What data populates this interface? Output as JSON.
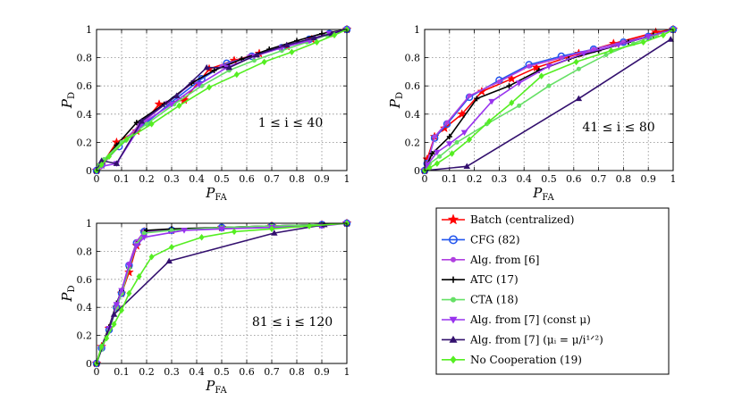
{
  "chart_data": [
    {
      "type": "line",
      "panel": "top-left",
      "annotation": "1 ≤ i ≤ 40",
      "xlabel": "P",
      "xlabel_sub": "FA",
      "ylabel": "P",
      "ylabel_sub": "D",
      "xlim": [
        0,
        1
      ],
      "ylim": [
        0,
        1
      ],
      "xticks": [
        "0",
        "0.1",
        "0.2",
        "0.3",
        "0.4",
        "0.5",
        "0.6",
        "0.7",
        "0.8",
        "0.9",
        "1"
      ],
      "yticks": [
        "0",
        "0.2",
        "0.4",
        "0.6",
        "0.8",
        "1"
      ],
      "grid": true,
      "series": [
        {
          "key": "batch",
          "x": [
            0,
            0.02,
            0.08,
            0.16,
            0.25,
            0.35,
            0.45,
            0.55,
            0.65,
            0.76,
            0.86,
            0.93,
            1
          ],
          "y": [
            0,
            0.04,
            0.2,
            0.28,
            0.47,
            0.5,
            0.72,
            0.78,
            0.83,
            0.88,
            0.93,
            0.97,
            1
          ]
        },
        {
          "key": "cfg",
          "x": [
            0,
            0.02,
            0.09,
            0.2,
            0.31,
            0.42,
            0.52,
            0.62,
            0.74,
            0.85,
            0.93,
            1
          ],
          "y": [
            0,
            0.04,
            0.17,
            0.34,
            0.5,
            0.65,
            0.76,
            0.81,
            0.87,
            0.93,
            0.97,
            1
          ]
        },
        {
          "key": "alg6",
          "x": [
            0,
            0.02,
            0.08,
            0.17,
            0.28,
            0.39,
            0.5,
            0.61,
            0.73,
            0.84,
            0.92,
            1
          ],
          "y": [
            0,
            0.03,
            0.16,
            0.32,
            0.48,
            0.63,
            0.74,
            0.81,
            0.87,
            0.92,
            0.97,
            1
          ]
        },
        {
          "key": "atc",
          "x": [
            0,
            0.02,
            0.08,
            0.16,
            0.27,
            0.38,
            0.47,
            0.58,
            0.69,
            0.8,
            0.9,
            1
          ],
          "y": [
            0,
            0.05,
            0.18,
            0.34,
            0.47,
            0.62,
            0.71,
            0.79,
            0.86,
            0.92,
            0.97,
            1
          ]
        },
        {
          "key": "cta",
          "x": [
            0,
            0.01,
            0.03,
            0.1,
            0.2,
            0.31,
            0.42,
            0.53,
            0.63,
            0.74,
            0.84,
            0.92,
            1
          ],
          "y": [
            0,
            0.04,
            0.08,
            0.2,
            0.33,
            0.47,
            0.6,
            0.71,
            0.78,
            0.85,
            0.91,
            0.96,
            1
          ]
        },
        {
          "key": "alg7c",
          "x": [
            0,
            0.02,
            0.08,
            0.18,
            0.3,
            0.41,
            0.52,
            0.63,
            0.74,
            0.85,
            0.93,
            1
          ],
          "y": [
            0,
            0.03,
            0.05,
            0.33,
            0.47,
            0.61,
            0.73,
            0.81,
            0.87,
            0.92,
            0.97,
            1
          ]
        },
        {
          "key": "alg7v",
          "x": [
            0,
            0.02,
            0.08,
            0.18,
            0.32,
            0.44,
            0.53,
            0.64,
            0.76,
            0.87,
            0.94,
            1
          ],
          "y": [
            0,
            0.07,
            0.05,
            0.35,
            0.53,
            0.73,
            0.73,
            0.82,
            0.89,
            0.94,
            0.97,
            1
          ]
        },
        {
          "key": "nocoop",
          "x": [
            0,
            0.02,
            0.05,
            0.12,
            0.22,
            0.33,
            0.45,
            0.56,
            0.67,
            0.78,
            0.88,
            0.95,
            1
          ],
          "y": [
            0,
            0.04,
            0.1,
            0.22,
            0.33,
            0.46,
            0.59,
            0.68,
            0.77,
            0.84,
            0.91,
            0.96,
            1
          ]
        }
      ]
    },
    {
      "type": "line",
      "panel": "top-right",
      "annotation": "41 ≤ i ≤ 80",
      "xlabel": "P",
      "xlabel_sub": "FA",
      "ylabel": "P",
      "ylabel_sub": "D",
      "xlim": [
        0,
        1
      ],
      "ylim": [
        0,
        1
      ],
      "xticks": [
        "0",
        "0.1",
        "0.2",
        "0.3",
        "0.4",
        "0.5",
        "0.6",
        "0.7",
        "0.8",
        "0.9",
        "1"
      ],
      "yticks": [
        "0",
        "0.2",
        "0.4",
        "0.6",
        "0.8",
        "1"
      ],
      "grid": true,
      "series": [
        {
          "key": "batch",
          "x": [
            0,
            0.01,
            0.04,
            0.08,
            0.15,
            0.23,
            0.35,
            0.45,
            0.62,
            0.76,
            0.93,
            1
          ],
          "y": [
            0,
            0.08,
            0.24,
            0.3,
            0.4,
            0.56,
            0.65,
            0.73,
            0.83,
            0.9,
            0.98,
            1
          ]
        },
        {
          "key": "cfg",
          "x": [
            0,
            0.01,
            0.04,
            0.09,
            0.18,
            0.3,
            0.42,
            0.55,
            0.68,
            0.8,
            0.9,
            1
          ],
          "y": [
            0,
            0.05,
            0.23,
            0.33,
            0.52,
            0.64,
            0.75,
            0.81,
            0.86,
            0.91,
            0.95,
            1
          ]
        },
        {
          "key": "alg6",
          "x": [
            0,
            0.01,
            0.04,
            0.09,
            0.18,
            0.3,
            0.42,
            0.55,
            0.68,
            0.8,
            0.9,
            1
          ],
          "y": [
            0,
            0.05,
            0.24,
            0.34,
            0.53,
            0.63,
            0.74,
            0.8,
            0.86,
            0.91,
            0.95,
            1
          ]
        },
        {
          "key": "atc",
          "x": [
            0,
            0.01,
            0.03,
            0.1,
            0.21,
            0.34,
            0.46,
            0.58,
            0.7,
            0.82,
            0.92,
            1
          ],
          "y": [
            0,
            0.04,
            0.12,
            0.24,
            0.51,
            0.6,
            0.71,
            0.79,
            0.85,
            0.91,
            0.96,
            1
          ]
        },
        {
          "key": "cta",
          "x": [
            0,
            0.02,
            0.06,
            0.13,
            0.25,
            0.38,
            0.5,
            0.62,
            0.73,
            0.84,
            0.93,
            1
          ],
          "y": [
            0,
            0.05,
            0.1,
            0.2,
            0.33,
            0.46,
            0.6,
            0.72,
            0.82,
            0.9,
            0.96,
            1
          ]
        },
        {
          "key": "alg7c",
          "x": [
            0,
            0.01,
            0.05,
            0.1,
            0.16,
            0.27,
            0.38,
            0.5,
            0.64,
            0.78,
            0.9,
            1
          ],
          "y": [
            0,
            0.04,
            0.13,
            0.19,
            0.27,
            0.49,
            0.62,
            0.74,
            0.83,
            0.89,
            0.95,
            1
          ]
        },
        {
          "key": "alg7v",
          "x": [
            0,
            0.17,
            0.62,
            0.99
          ],
          "y": [
            0,
            0.03,
            0.51,
            0.93
          ]
        },
        {
          "key": "nocoop",
          "x": [
            0,
            0.02,
            0.05,
            0.11,
            0.18,
            0.26,
            0.35,
            0.47,
            0.61,
            0.75,
            0.88,
            0.96,
            1
          ],
          "y": [
            0,
            0.02,
            0.05,
            0.12,
            0.22,
            0.35,
            0.48,
            0.67,
            0.77,
            0.85,
            0.91,
            0.96,
            1
          ]
        }
      ]
    },
    {
      "type": "line",
      "panel": "bottom-left",
      "annotation": "81 ≤ i ≤ 120",
      "xlabel": "P",
      "xlabel_sub": "FA",
      "ylabel": "P",
      "ylabel_sub": "D",
      "xlim": [
        0,
        1
      ],
      "ylim": [
        0,
        1
      ],
      "xticks": [
        "0",
        "0.1",
        "0.2",
        "0.3",
        "0.4",
        "0.5",
        "0.6",
        "0.7",
        "0.8",
        "0.9",
        "1"
      ],
      "yticks": [
        "0",
        "0.2",
        "0.4",
        "0.6",
        "0.8",
        "1"
      ],
      "grid": true,
      "series": [
        {
          "key": "batch",
          "x": [
            0,
            0.02,
            0.05,
            0.08,
            0.1,
            0.13,
            0.16,
            0.19,
            0.3,
            0.5,
            0.7,
            0.9,
            1
          ],
          "y": [
            0,
            0.12,
            0.25,
            0.4,
            0.5,
            0.65,
            0.84,
            0.94,
            0.95,
            0.97,
            0.98,
            0.99,
            1
          ]
        },
        {
          "key": "cfg",
          "x": [
            0,
            0.02,
            0.05,
            0.08,
            0.1,
            0.13,
            0.16,
            0.19,
            0.3,
            0.5,
            0.7,
            0.9,
            1
          ],
          "y": [
            0,
            0.11,
            0.24,
            0.4,
            0.5,
            0.7,
            0.86,
            0.94,
            0.95,
            0.97,
            0.98,
            0.99,
            1
          ]
        },
        {
          "key": "alg6",
          "x": [
            0,
            0.02,
            0.05,
            0.08,
            0.1,
            0.13,
            0.16,
            0.19,
            0.3,
            0.5,
            0.7,
            0.9,
            1
          ],
          "y": [
            0,
            0.11,
            0.25,
            0.42,
            0.52,
            0.71,
            0.87,
            0.94,
            0.95,
            0.97,
            0.98,
            0.99,
            1
          ]
        },
        {
          "key": "atc",
          "x": [
            0,
            0.02,
            0.05,
            0.08,
            0.1,
            0.13,
            0.16,
            0.2,
            0.3,
            0.5,
            0.7,
            0.9,
            1
          ],
          "y": [
            0,
            0.12,
            0.26,
            0.43,
            0.52,
            0.68,
            0.85,
            0.95,
            0.96,
            0.97,
            0.98,
            0.99,
            1
          ]
        },
        {
          "key": "cta",
          "x": [
            0,
            0.02,
            0.05,
            0.08,
            0.1,
            0.13,
            0.16,
            0.19,
            0.3,
            0.5,
            0.7,
            0.9,
            1
          ],
          "y": [
            0,
            0.1,
            0.24,
            0.4,
            0.5,
            0.68,
            0.85,
            0.93,
            0.95,
            0.97,
            0.98,
            0.99,
            1
          ]
        },
        {
          "key": "alg7c",
          "x": [
            0,
            0.02,
            0.05,
            0.08,
            0.1,
            0.13,
            0.16,
            0.19,
            0.35,
            0.5,
            0.7,
            0.9,
            1
          ],
          "y": [
            0,
            0.11,
            0.25,
            0.42,
            0.52,
            0.7,
            0.84,
            0.9,
            0.95,
            0.96,
            0.97,
            0.98,
            1
          ]
        },
        {
          "key": "alg7v",
          "x": [
            0,
            0.07,
            0.29,
            0.71,
            0.91,
            1
          ],
          "y": [
            0,
            0.35,
            0.73,
            0.93,
            0.99,
            1
          ]
        },
        {
          "key": "nocoop",
          "x": [
            0,
            0.02,
            0.04,
            0.07,
            0.1,
            0.13,
            0.17,
            0.22,
            0.3,
            0.42,
            0.55,
            0.7,
            0.85,
            1
          ],
          "y": [
            0,
            0.12,
            0.18,
            0.28,
            0.38,
            0.5,
            0.62,
            0.76,
            0.83,
            0.9,
            0.94,
            0.96,
            0.98,
            1
          ]
        }
      ]
    }
  ],
  "legend": [
    {
      "key": "batch",
      "label": "Batch (centralized)",
      "color": "#ff0000",
      "marker": "star"
    },
    {
      "key": "cfg",
      "label": "CFG (82)",
      "color": "#2255ee",
      "marker": "circle-open"
    },
    {
      "key": "alg6",
      "label": "Alg. from [6]",
      "color": "#b040e0",
      "marker": "dot"
    },
    {
      "key": "atc",
      "label": "ATC (17)",
      "color": "#000000",
      "marker": "plus"
    },
    {
      "key": "cta",
      "label": "CTA (18)",
      "color": "#66e066",
      "marker": "dot"
    },
    {
      "key": "alg7c",
      "label": "Alg. from [7] (const μ)",
      "color": "#9933ee",
      "marker": "tri-down"
    },
    {
      "key": "alg7v",
      "label": "Alg. from [7] (μᵢ = μ/i¹ᐟ²)",
      "color": "#33106e",
      "marker": "tri-up"
    },
    {
      "key": "nocoop",
      "label": "No Cooperation (19)",
      "color": "#55ee22",
      "marker": "diamond"
    }
  ]
}
